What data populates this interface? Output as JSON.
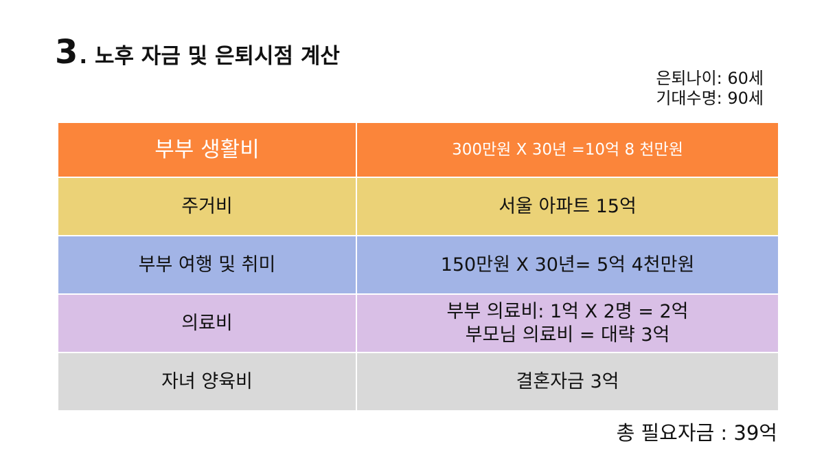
{
  "title": {
    "number": "3",
    "text": ". 노후 자금 및 은퇴시점 계산"
  },
  "meta": {
    "retire_age": "은퇴나이: 60세",
    "life_expectancy": "기대수명: 90세"
  },
  "table": {
    "header": {
      "label": "부부 생활비",
      "value": "300만원 X 30년 =10억 8 천만원"
    },
    "rows": [
      {
        "label": "주거비",
        "value_lines": [
          "서울 아파트 15억"
        ]
      },
      {
        "label": "부부 여행 및 취미",
        "value_lines": [
          "150만원 X 30년= 5억 4천만원"
        ]
      },
      {
        "label": "의료비",
        "value_lines": [
          "부부 의료비: 1억 X 2명 = 2억",
          "부모님 의료비 = 대략 3억"
        ]
      },
      {
        "label": "자녀 양육비",
        "value_lines": [
          "결혼자금 3억"
        ]
      }
    ]
  },
  "total": "총 필요자금 : 39억",
  "colors": {
    "header": "#fb853a",
    "housing": "#ebd277",
    "travel": "#a2b4e6",
    "medical": "#d9bfe6",
    "children": "#d9d9d9"
  }
}
